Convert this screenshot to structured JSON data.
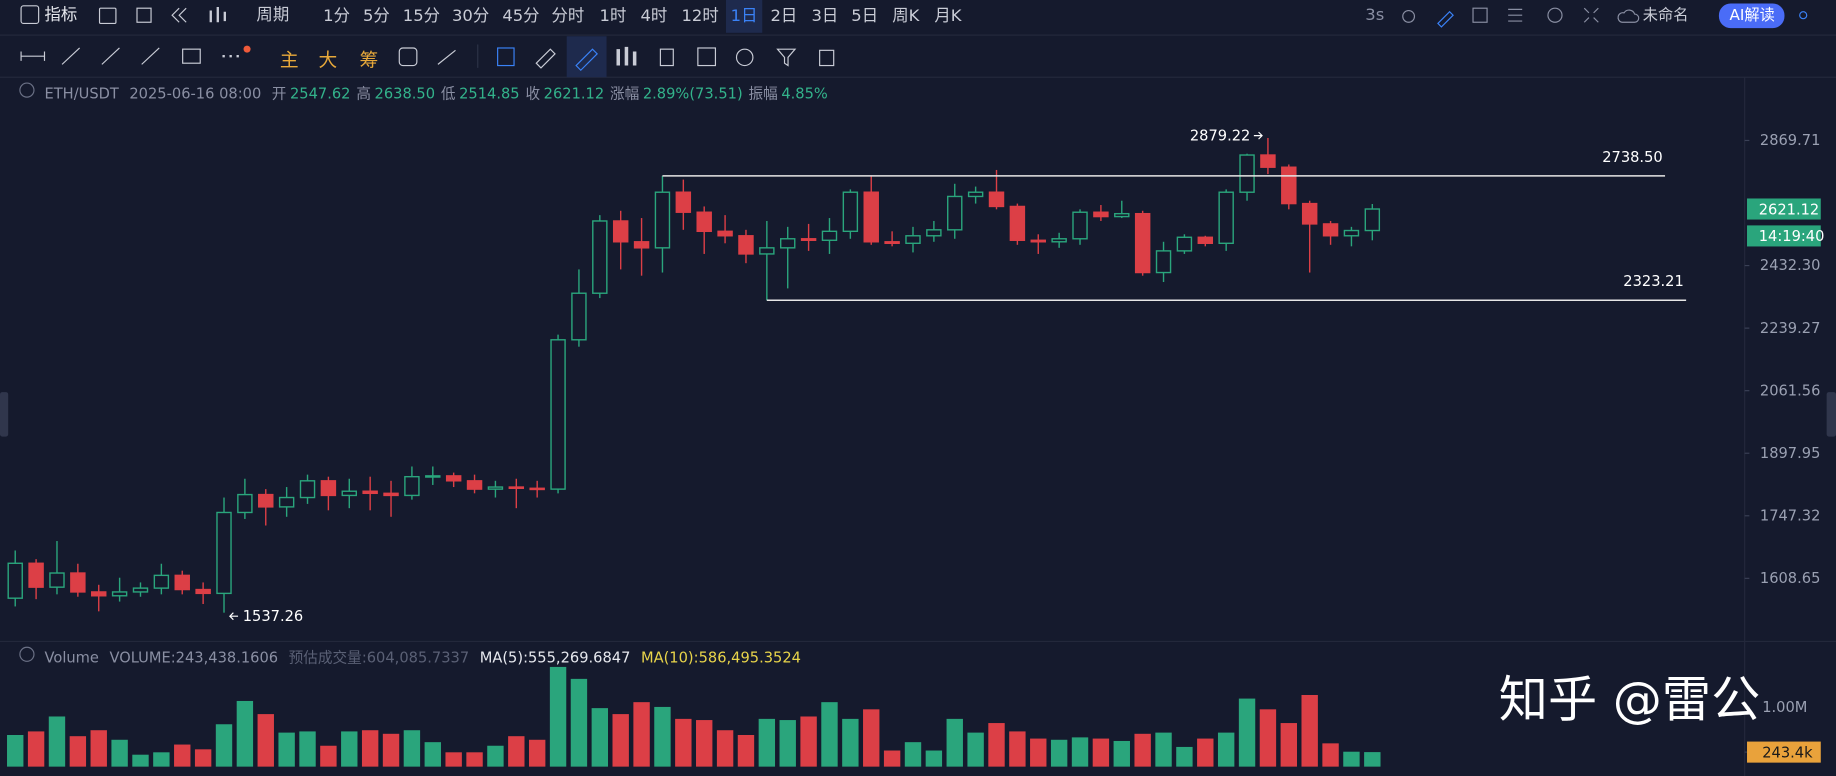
{
  "toolbar": {
    "indicator": "指标",
    "period": "周期",
    "intervals": [
      "1分",
      "5分",
      "15分",
      "30分",
      "45分",
      "分时",
      "1时",
      "4时",
      "12时",
      "1日",
      "2日",
      "3日",
      "5日",
      "周K",
      "月K"
    ],
    "refresh": "3s",
    "layout_name": "未命名",
    "ai_button": "AI解读"
  },
  "drawing_toolbar": {
    "chips": [
      "主",
      "大",
      "筹"
    ]
  },
  "info": {
    "symbol": "ETH/USDT",
    "time": "2025-06-16 08:00",
    "fields": [
      {
        "label": "开",
        "value": "2547.62"
      },
      {
        "label": "高",
        "value": "2638.50"
      },
      {
        "label": "低",
        "value": "2514.85"
      },
      {
        "label": "收",
        "value": "2621.12"
      },
      {
        "label": "涨幅",
        "value": "2.89%(73.51)"
      },
      {
        "label": "振幅",
        "value": "4.85%"
      }
    ]
  },
  "volume_legend": {
    "name": "Volume",
    "volume": "VOLUME:243,438.1606",
    "estimate": "预估成交量:604,085.7337",
    "ma5": "MA(5):555,269.6847",
    "ma10": "MA(10):586,495.3524"
  },
  "watermark": "知乎 @雷公",
  "chart_data": [
    {
      "type": "candlestick",
      "log_scale": true,
      "ylim": [
        1480,
        3115
      ],
      "yticks": [
        1608.65,
        1747.32,
        1897.95,
        2061.56,
        2239.27,
        {
          "value": 2432.3,
          "label": "2432.30"
        },
        2869.71
      ],
      "up_color": "#2aa57c",
      "down_color": "#dc3f46",
      "open": [
        1567,
        1641,
        1590,
        1620,
        1580,
        1572,
        1580,
        1588,
        1615,
        1585,
        1577,
        1755,
        1797,
        1768,
        1790,
        1830,
        1795,
        1805,
        1800,
        1795,
        1840,
        1842,
        1830,
        1810,
        1815,
        1812,
        1810,
        2205,
        2345,
        2580,
        2510,
        2490,
        2680,
        2610,
        2545,
        2530,
        2470,
        2490,
        2520,
        2515,
        2545,
        2680,
        2510,
        2505,
        2530,
        2550,
        2665,
        2680,
        2630,
        2515,
        2510,
        2520,
        2610,
        2595,
        2605,
        2410,
        2480,
        2525,
        2505,
        2680,
        2815,
        2770,
        2640,
        2570,
        2530,
        2547.62
      ],
      "high": [
        1669,
        1650,
        1690,
        1640,
        1595,
        1610,
        1600,
        1640,
        1625,
        1600,
        1790,
        1835,
        1810,
        1815,
        1845,
        1840,
        1835,
        1840,
        1830,
        1865,
        1865,
        1850,
        1845,
        1830,
        1835,
        1830,
        2220,
        2420,
        2600,
        2615,
        2590,
        2738.5,
        2725,
        2630,
        2600,
        2550,
        2580,
        2560,
        2570,
        2590,
        2690,
        2740,
        2545,
        2560,
        2580,
        2710,
        2700,
        2760,
        2640,
        2535,
        2540,
        2620,
        2635,
        2650,
        2615,
        2510,
        2535,
        2530,
        2690,
        2820,
        2879.22,
        2780,
        2650,
        2580,
        2560,
        2638.5
      ],
      "low": [
        1550,
        1565,
        1575,
        1570,
        1540,
        1560,
        1570,
        1575,
        1575,
        1555,
        1537.26,
        1740,
        1725,
        1745,
        1775,
        1760,
        1765,
        1760,
        1745,
        1785,
        1820,
        1815,
        1800,
        1790,
        1765,
        1790,
        1800,
        2185,
        2330,
        2420,
        2400,
        2410,
        2550,
        2470,
        2505,
        2440,
        2323.21,
        2360,
        2480,
        2470,
        2520,
        2500,
        2495,
        2475,
        2510,
        2520,
        2640,
        2620,
        2500,
        2470,
        2490,
        2500,
        2580,
        2590,
        2400,
        2380,
        2470,
        2495,
        2480,
        2650,
        2745,
        2620,
        2410,
        2500,
        2495,
        2514.85
      ],
      "close": [
        1641,
        1590,
        1620,
        1580,
        1572,
        1580,
        1588,
        1615,
        1585,
        1577,
        1755,
        1797,
        1768,
        1790,
        1830,
        1795,
        1805,
        1800,
        1795,
        1840,
        1842,
        1830,
        1810,
        1815,
        1812,
        1810,
        2205,
        2345,
        2580,
        2510,
        2490,
        2680,
        2610,
        2545,
        2530,
        2470,
        2490,
        2520,
        2515,
        2545,
        2680,
        2510,
        2505,
        2530,
        2550,
        2665,
        2680,
        2630,
        2515,
        2510,
        2520,
        2610,
        2595,
        2605,
        2410,
        2480,
        2525,
        2505,
        2680,
        2815,
        2770,
        2640,
        2570,
        2530,
        2547.62,
        2621.12
      ],
      "hlines": [
        {
          "value": 2738.5,
          "label": "2738.50"
        },
        {
          "value": 2323.21,
          "label": "2323.21"
        }
      ],
      "annotations": [
        2879.22,
        1537.26
      ],
      "countdown": "14:19:40"
    },
    {
      "type": "bar",
      "ylim": [
        0,
        1980000
      ],
      "yticks": [
        {
          "value": 1000000,
          "label": "1.00M"
        },
        {
          "value": 243438.1606,
          "label": "243.4k"
        }
      ],
      "values": [
        530000,
        590000,
        840000,
        510000,
        610000,
        450000,
        200000,
        240000,
        370000,
        290000,
        710000,
        1100000,
        880000,
        570000,
        590000,
        350000,
        590000,
        610000,
        550000,
        610000,
        410000,
        240000,
        240000,
        350000,
        510000,
        450000,
        1670000,
        1470000,
        980000,
        880000,
        1080000,
        1000000,
        800000,
        780000,
        610000,
        530000,
        800000,
        780000,
        840000,
        1080000,
        800000,
        960000,
        270000,
        410000,
        270000,
        800000,
        570000,
        730000,
        590000,
        470000,
        450000,
        490000,
        470000,
        430000,
        550000,
        570000,
        330000,
        470000,
        570000,
        1140000,
        960000,
        730000,
        1200000,
        390000,
        250000,
        243438.1606
      ]
    }
  ]
}
